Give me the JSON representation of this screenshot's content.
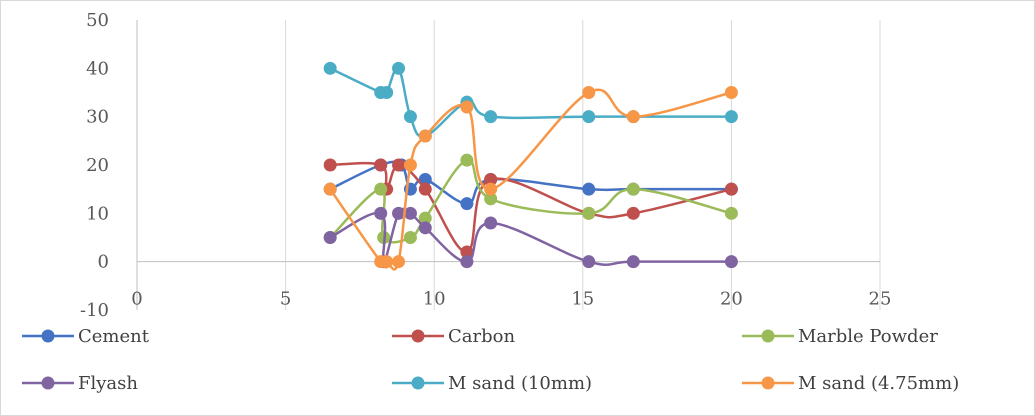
{
  "chart_data": {
    "type": "scatter",
    "title": "",
    "xlabel": "",
    "ylabel": "",
    "xlim": [
      0,
      25
    ],
    "ylim": [
      -10,
      50
    ],
    "x_ticks": [
      0,
      5,
      10,
      15,
      20,
      25
    ],
    "y_ticks": [
      -10,
      0,
      10,
      20,
      30,
      40,
      50
    ],
    "x_tick_labels": [
      "0",
      "5",
      "10",
      "15",
      "20",
      "25"
    ],
    "y_tick_labels": [
      "-10",
      "0",
      "10",
      "20",
      "30",
      "40",
      "50"
    ],
    "grid": "vertical",
    "legend_position": "bottom",
    "smooth_lines": true,
    "series": [
      {
        "name": "Cement",
        "color": "#4472C4",
        "points": [
          [
            6.5,
            15
          ],
          [
            8.2,
            20
          ],
          [
            8.9,
            20
          ],
          [
            9.2,
            15
          ],
          [
            9.7,
            17
          ],
          [
            11.1,
            12
          ],
          [
            11.9,
            17
          ],
          [
            15.2,
            15
          ],
          [
            16.7,
            15
          ],
          [
            20,
            15
          ]
        ]
      },
      {
        "name": "Carbon",
        "color": "#C0504D",
        "points": [
          [
            6.5,
            20
          ],
          [
            8.2,
            20
          ],
          [
            8.4,
            15
          ],
          [
            8.8,
            20
          ],
          [
            9.7,
            15
          ],
          [
            11.1,
            2
          ],
          [
            11.9,
            17
          ],
          [
            15.2,
            10
          ],
          [
            16.7,
            10
          ],
          [
            20,
            15
          ]
        ]
      },
      {
        "name": "Marble Powder",
        "color": "#9BBB59",
        "points": [
          [
            6.5,
            5
          ],
          [
            8.2,
            15
          ],
          [
            8.3,
            5
          ],
          [
            9.2,
            5
          ],
          [
            9.7,
            9
          ],
          [
            11.1,
            21
          ],
          [
            11.9,
            13
          ],
          [
            15.2,
            10
          ],
          [
            16.7,
            15
          ],
          [
            20,
            10
          ]
        ]
      },
      {
        "name": "Flyash",
        "color": "#8064A2",
        "points": [
          [
            6.5,
            5
          ],
          [
            8.2,
            10
          ],
          [
            8.3,
            0
          ],
          [
            8.8,
            10
          ],
          [
            9.2,
            10
          ],
          [
            9.7,
            7
          ],
          [
            11.1,
            0
          ],
          [
            11.9,
            8
          ],
          [
            15.2,
            0
          ],
          [
            16.7,
            0
          ],
          [
            20,
            0
          ]
        ]
      },
      {
        "name": "M sand (10mm)",
        "color": "#4BACC6",
        "points": [
          [
            6.5,
            40
          ],
          [
            8.2,
            35
          ],
          [
            8.4,
            35
          ],
          [
            8.8,
            40
          ],
          [
            9.2,
            30
          ],
          [
            9.7,
            26
          ],
          [
            11.1,
            33
          ],
          [
            11.9,
            30
          ],
          [
            15.2,
            30
          ],
          [
            16.7,
            30
          ],
          [
            20,
            30
          ]
        ]
      },
      {
        "name": "M sand (4.75mm)",
        "color": "#F79646",
        "points": [
          [
            6.5,
            15
          ],
          [
            8.2,
            0
          ],
          [
            8.4,
            0
          ],
          [
            8.8,
            0
          ],
          [
            9.2,
            20
          ],
          [
            9.7,
            26
          ],
          [
            11.1,
            32
          ],
          [
            11.9,
            15
          ],
          [
            15.2,
            35
          ],
          [
            16.7,
            30
          ],
          [
            20,
            35
          ]
        ]
      }
    ]
  }
}
